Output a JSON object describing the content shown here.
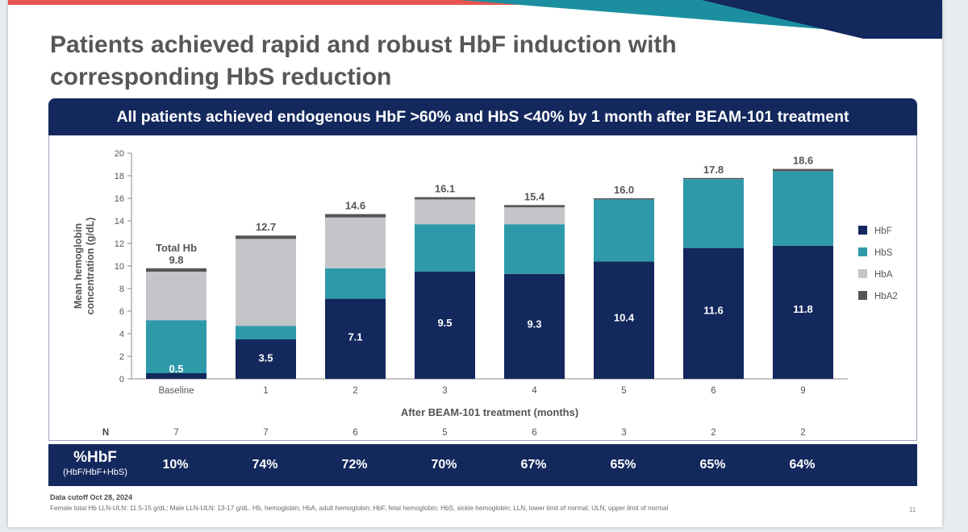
{
  "title": "Patients achieved rapid and robust HbF induction with corresponding HbS reduction",
  "banner": "All patients achieved endogenous HbF >60% and HbS <40% by 1 month after BEAM-101 treatment",
  "hbf_row": {
    "label": "%HbF",
    "sublabel": "(HbF/HbF+HbS)",
    "values": [
      "10%",
      "74%",
      "72%",
      "70%",
      "67%",
      "65%",
      "65%",
      "64%"
    ]
  },
  "n_row": {
    "label": "N",
    "values": [
      "7",
      "7",
      "6",
      "5",
      "6",
      "3",
      "2",
      "2"
    ]
  },
  "footnotes": {
    "cutoff": "Data cutoff Oct 28, 2024",
    "definitions": "Female total Hb LLN-ULN: 11.5-15 g/dL; Male LLN-ULN: 13-17 g/dL. Hb, hemoglobin; HbA, adult hemoglobin; HbF, fetal hemoglobin; HbS, sickle hemoglobin; LLN, lower limit of normal; ULN, upper limit of normal"
  },
  "page_number": "11",
  "colors": {
    "HbF": "#13285c",
    "HbS": "#2e9aa9",
    "HbA": "#c3c5c8",
    "HbA2": "#555555",
    "accent_stripe": "#e8544f"
  },
  "chart_data": {
    "type": "bar",
    "stacked": true,
    "categories": [
      "Baseline",
      "1",
      "2",
      "3",
      "4",
      "5",
      "6",
      "9"
    ],
    "xlabel": "After BEAM-101 treatment (months)",
    "ylabel": "Mean hemoglobin concentration (g/dL)",
    "ylim": [
      0,
      20
    ],
    "yticks": [
      0,
      2,
      4,
      6,
      8,
      10,
      12,
      14,
      16,
      18,
      20
    ],
    "grid": false,
    "legend_position": "right",
    "series": [
      {
        "name": "HbF",
        "values": [
          0.5,
          3.5,
          7.1,
          9.5,
          9.3,
          10.4,
          11.6,
          11.8
        ]
      },
      {
        "name": "HbS",
        "values": [
          4.7,
          1.2,
          2.7,
          4.2,
          4.4,
          5.5,
          6.1,
          6.6
        ]
      },
      {
        "name": "HbA",
        "values": [
          4.3,
          7.7,
          4.5,
          2.2,
          1.5,
          0,
          0,
          0
        ]
      },
      {
        "name": "HbA2",
        "values": [
          0.3,
          0.3,
          0.3,
          0.2,
          0.2,
          0.1,
          0.1,
          0.2
        ]
      }
    ],
    "totals": [
      9.8,
      12.7,
      14.6,
      16.1,
      15.4,
      16.0,
      17.8,
      18.6
    ],
    "total_labels": [
      "9.8",
      "12.7",
      "14.6",
      "16.1",
      "15.4",
      "16.0",
      "17.8",
      "18.6"
    ],
    "hbf_labels": [
      "0.5",
      "3.5",
      "7.1",
      "9.5",
      "9.3",
      "10.4",
      "11.6",
      "11.8"
    ],
    "total_annotation": "Total Hb"
  }
}
